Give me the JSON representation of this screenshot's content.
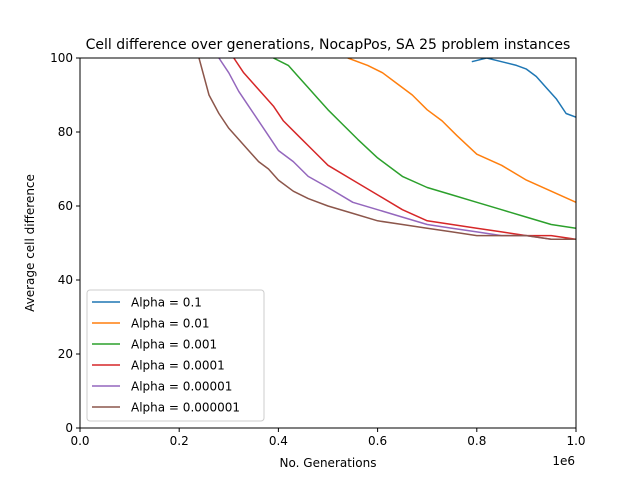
{
  "chart_data": {
    "type": "line",
    "title": "Cell difference over generations, NocapPos, SA 25 problem instances",
    "xlabel": "No. Generations",
    "ylabel": "Average cell difference",
    "x_offset_label": "1e6",
    "xlim": [
      0,
      1000000
    ],
    "ylim": [
      0,
      100
    ],
    "x_ticks": [
      0,
      200000,
      400000,
      600000,
      800000,
      1000000
    ],
    "x_tick_labels": [
      "0.0",
      "0.2",
      "0.4",
      "0.6",
      "0.8",
      "1.0"
    ],
    "y_ticks": [
      0,
      20,
      40,
      60,
      80,
      100
    ],
    "y_tick_labels": [
      "0",
      "20",
      "40",
      "60",
      "80",
      "100"
    ],
    "grid": false,
    "legend_position": "lower-left",
    "series": [
      {
        "name": "Alpha = 0.1",
        "color": "#1f77b4",
        "x": [
          790000,
          820000,
          850000,
          880000,
          900000,
          920000,
          940000,
          960000,
          980000,
          1000000
        ],
        "y": [
          99,
          100,
          99,
          98,
          97,
          95,
          92,
          89,
          85,
          84
        ]
      },
      {
        "name": "Alpha = 0.01",
        "color": "#ff7f0e",
        "x": [
          540000,
          580000,
          610000,
          640000,
          670000,
          700000,
          730000,
          760000,
          800000,
          850000,
          900000,
          950000,
          1000000
        ],
        "y": [
          100,
          98,
          96,
          93,
          90,
          86,
          83,
          79,
          74,
          71,
          67,
          64,
          61
        ]
      },
      {
        "name": "Alpha = 0.001",
        "color": "#2ca02c",
        "x": [
          390000,
          420000,
          440000,
          460000,
          480000,
          500000,
          530000,
          560000,
          600000,
          650000,
          700000,
          750000,
          800000,
          850000,
          900000,
          950000,
          1000000
        ],
        "y": [
          100,
          98,
          95,
          92,
          89,
          86,
          82,
          78,
          73,
          68,
          65,
          63,
          61,
          59,
          57,
          55,
          54
        ]
      },
      {
        "name": "Alpha = 0.0001",
        "color": "#d62728",
        "x": [
          310000,
          330000,
          350000,
          370000,
          390000,
          410000,
          440000,
          470000,
          500000,
          550000,
          600000,
          650000,
          700000,
          750000,
          800000,
          850000,
          900000,
          950000,
          1000000
        ],
        "y": [
          100,
          96,
          93,
          90,
          87,
          83,
          79,
          75,
          71,
          67,
          63,
          59,
          56,
          55,
          54,
          53,
          52,
          52,
          51
        ]
      },
      {
        "name": "Alpha = 0.00001",
        "color": "#9467bd",
        "x": [
          280000,
          300000,
          320000,
          340000,
          360000,
          380000,
          400000,
          430000,
          460000,
          500000,
          550000,
          600000,
          650000,
          700000,
          750000,
          800000,
          850000,
          900000,
          950000,
          1000000
        ],
        "y": [
          100,
          96,
          91,
          87,
          83,
          79,
          75,
          72,
          68,
          65,
          61,
          59,
          57,
          55,
          54,
          53,
          52,
          52,
          51,
          51
        ]
      },
      {
        "name": "Alpha = 0.000001",
        "color": "#8c564b",
        "x": [
          240000,
          250000,
          260000,
          280000,
          300000,
          320000,
          340000,
          360000,
          380000,
          400000,
          430000,
          460000,
          500000,
          550000,
          600000,
          650000,
          700000,
          750000,
          800000,
          850000,
          900000,
          950000,
          1000000
        ],
        "y": [
          100,
          95,
          90,
          85,
          81,
          78,
          75,
          72,
          70,
          67,
          64,
          62,
          60,
          58,
          56,
          55,
          54,
          53,
          52,
          52,
          52,
          51,
          51
        ]
      }
    ]
  }
}
